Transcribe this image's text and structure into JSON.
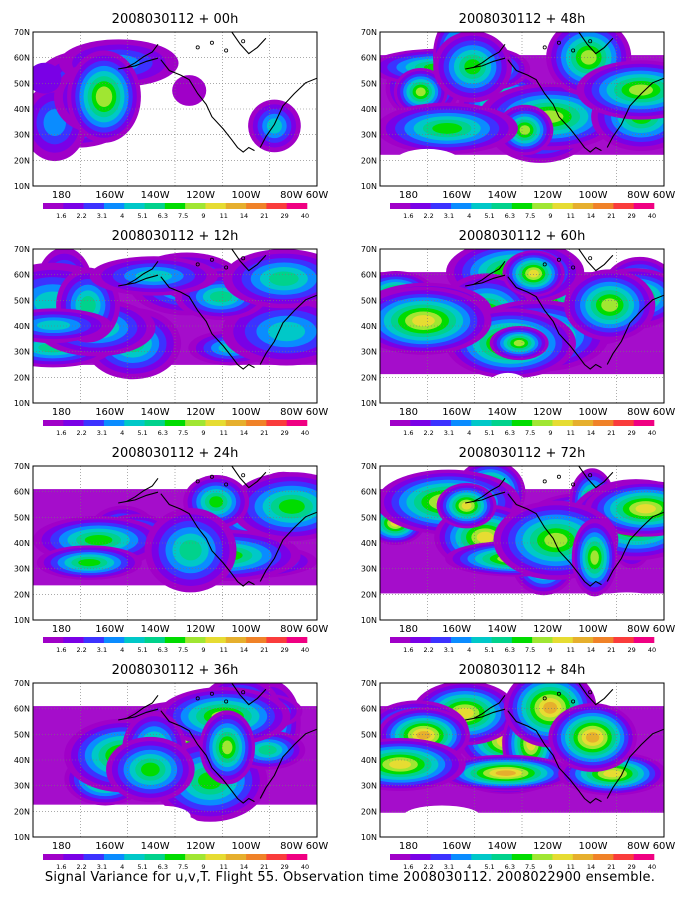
{
  "caption": "Signal Variance for u,v,T. Flight 55. Observation time 2008030112. 2008022900 ensemble.",
  "lat_labels": [
    "70N",
    "60N",
    "50N",
    "40N",
    "30N",
    "20N",
    "10N"
  ],
  "lon_labels": [
    "180",
    "160W",
    "140W",
    "120W",
    "100W",
    "80W",
    "60W"
  ],
  "colorbar": {
    "labels": [
      "1.6",
      "2.2",
      "3.1",
      "4",
      "5.1",
      "6.3",
      "7.5",
      "9",
      "11",
      "14",
      "21",
      "29",
      "40"
    ],
    "colors": [
      "#a000c8",
      "#7a00e6",
      "#3c32ff",
      "#0a8cff",
      "#00c8c8",
      "#00d28c",
      "#00dc00",
      "#a0e632",
      "#e6dc32",
      "#e6af2d",
      "#f08228",
      "#fa3c3c",
      "#f00082"
    ]
  },
  "panels": [
    {
      "title": "2008030112 + 00h"
    },
    {
      "title": "2008030112 + 48h"
    },
    {
      "title": "2008030112 + 12h"
    },
    {
      "title": "2008030112 + 60h"
    },
    {
      "title": "2008030112 + 24h"
    },
    {
      "title": "2008030112 + 72h"
    },
    {
      "title": "2008030112 + 36h"
    },
    {
      "title": "2008030112 + 84h"
    }
  ]
}
